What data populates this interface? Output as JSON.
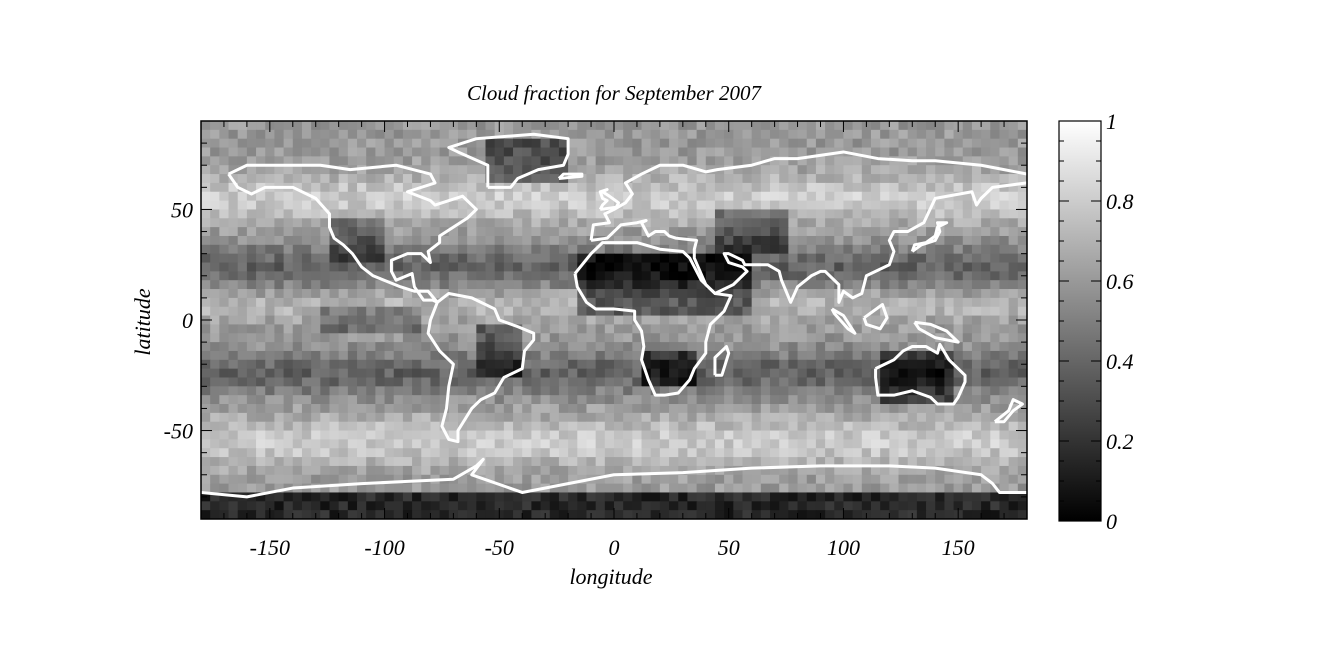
{
  "chart_data": {
    "type": "heatmap",
    "title": "Cloud fraction for September 2007",
    "xlabel": "longitude",
    "ylabel": "latitude",
    "xlim": [
      -180,
      180
    ],
    "ylim": [
      -90,
      90
    ],
    "xticks": [
      -150,
      -100,
      -50,
      0,
      50,
      100,
      150
    ],
    "yticks": [
      -50,
      0,
      50
    ],
    "colorbar": {
      "range": [
        0,
        1
      ],
      "ticks": [
        0,
        0.2,
        0.4,
        0.6,
        0.8,
        1
      ],
      "tick_labels": [
        "0",
        "0.2",
        "0.4",
        "0.6",
        "0.8",
        "1"
      ],
      "colormap": "grayscale"
    },
    "overlay": "coastlines",
    "colors": {
      "coastline": "#ffffff",
      "axes": "#000000"
    }
  }
}
